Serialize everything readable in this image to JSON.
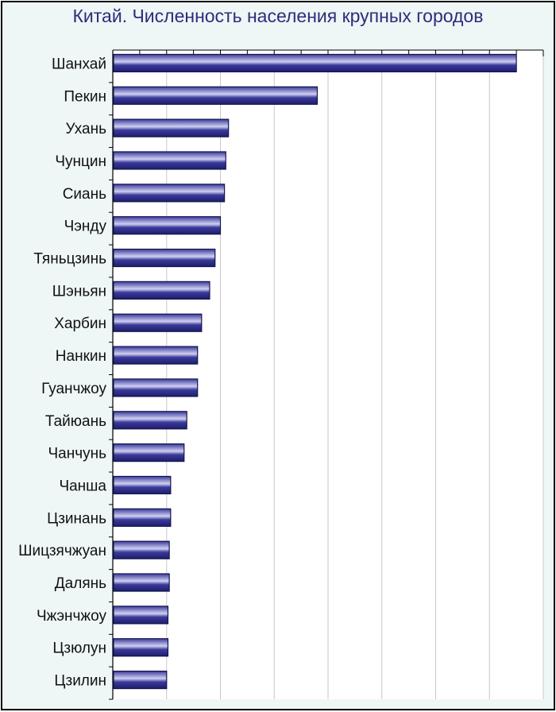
{
  "title": "Китай. Численность населения крупных городов",
  "colors": {
    "background": "#eef6f6",
    "plot_background": "#ffffff",
    "bar_fill": "#3a3a9c",
    "bar_highlight": "#d0d0f2",
    "bar_edge": "#141450",
    "title": "#2d2d7a",
    "grid": "#c8c8c8"
  },
  "chart_data": {
    "type": "bar",
    "orientation": "horizontal",
    "title": "Китай. Численность населения крупных городов",
    "xlabel": "",
    "ylabel": "",
    "categories": [
      "Шанхай",
      "Пекин",
      "Ухань",
      "Чунцин",
      "Сиань",
      "Чэнду",
      "Тяньцзинь",
      "Шэньян",
      "Харбин",
      "Нанкин",
      "Гуанчжоу",
      "Тайюань",
      "Чанчунь",
      "Чанша",
      "Цзинань",
      "Шицзячжуан",
      "Далянь",
      "Чжэнчжоу",
      "Цзюлун",
      "Цзилин"
    ],
    "values": [
      15.0,
      7.6,
      4.3,
      4.2,
      4.15,
      4.0,
      3.8,
      3.6,
      3.3,
      3.15,
      3.15,
      2.75,
      2.65,
      2.15,
      2.15,
      2.1,
      2.1,
      2.05,
      2.05,
      2.0
    ],
    "xlim": [
      0,
      16
    ],
    "grid": true
  }
}
